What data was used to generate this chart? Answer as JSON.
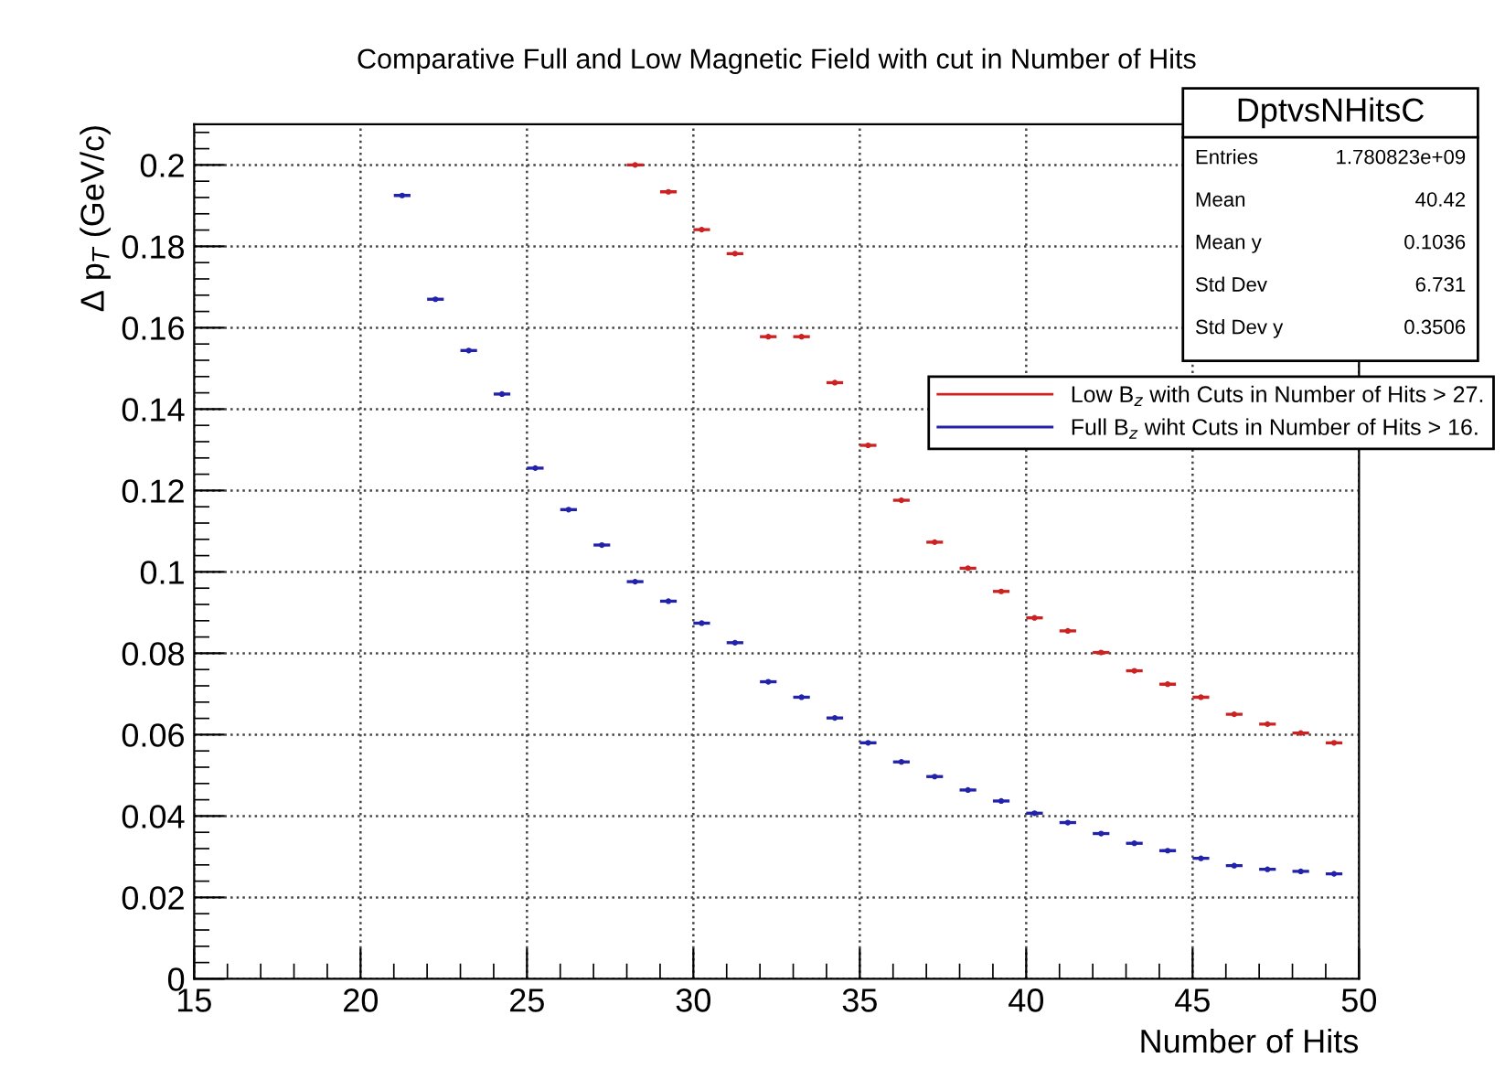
{
  "chart_data": {
    "type": "scatter",
    "title": "Comparative Full and Low Magnetic Field with cut in Number of Hits",
    "xlabel": "Number of Hits",
    "ylabel": "Δ p$_{T}$ (GeV/c)",
    "xlim": [
      15,
      50
    ],
    "xticks": [
      15,
      20,
      25,
      30,
      35,
      40,
      45,
      50
    ],
    "ylim": [
      0,
      0.21
    ],
    "yticks": [
      0,
      0.02,
      0.04,
      0.06,
      0.08,
      0.1,
      0.12,
      0.14,
      0.16,
      0.18,
      0.2
    ],
    "grid": true,
    "legend": "top right",
    "marker": "circle",
    "series": [
      {
        "name": "Low B$_{z}$ with Cuts in Number of Hits > 27.",
        "color": "#cc2222",
        "x": [
          28.25,
          29.25,
          30.25,
          31.25,
          32.25,
          33.25,
          34.25,
          35.25,
          36.25,
          37.25,
          38.25,
          39.25,
          40.25,
          41.25,
          42.25,
          43.25,
          44.25,
          45.25,
          46.25,
          47.25,
          48.25,
          49.25
        ],
        "values": [
          0.2,
          0.1934,
          0.1841,
          0.1782,
          0.1578,
          0.1578,
          0.1465,
          0.1311,
          0.1176,
          0.1073,
          0.1009,
          0.0952,
          0.0887,
          0.0855,
          0.0802,
          0.0757,
          0.0724,
          0.0692,
          0.065,
          0.0626,
          0.0604,
          0.058
        ],
        "xerrors": [
          0.25,
          0.25,
          0.25,
          0.25,
          0.25,
          0.25,
          0.25,
          0.25,
          0.25,
          0.25,
          0.25,
          0.25,
          0.25,
          0.25,
          0.25,
          0.25,
          0.25,
          0.25,
          0.25,
          0.25,
          0.25,
          0.25
        ]
      },
      {
        "name": "Full B$_{z}$ wiht Cuts in Number of Hits > 16.",
        "color": "#2222aa",
        "x": [
          21.25,
          22.25,
          23.25,
          24.25,
          25.25,
          26.25,
          27.25,
          28.25,
          29.25,
          30.25,
          31.25,
          32.25,
          33.25,
          34.25,
          35.25,
          36.25,
          37.25,
          38.25,
          39.25,
          40.25,
          41.25,
          42.25,
          43.25,
          44.25,
          45.25,
          46.25,
          47.25,
          48.25,
          49.25
        ],
        "values": [
          0.1925,
          0.167,
          0.1544,
          0.1437,
          0.1255,
          0.1153,
          0.1066,
          0.0976,
          0.0928,
          0.0874,
          0.0826,
          0.073,
          0.0692,
          0.0641,
          0.058,
          0.0533,
          0.0497,
          0.0464,
          0.0437,
          0.0407,
          0.0384,
          0.0357,
          0.0333,
          0.0315,
          0.0296,
          0.0278,
          0.0269,
          0.0264,
          0.0258
        ],
        "xerrors": [
          0.25,
          0.25,
          0.25,
          0.25,
          0.25,
          0.25,
          0.25,
          0.25,
          0.25,
          0.25,
          0.25,
          0.25,
          0.25,
          0.25,
          0.25,
          0.25,
          0.25,
          0.25,
          0.25,
          0.25,
          0.25,
          0.25,
          0.25,
          0.25,
          0.25,
          0.25,
          0.25,
          0.25,
          0.25
        ]
      }
    ],
    "annotations": [
      "DptvsNHitsC",
      "Entries",
      "1.780823e+09",
      "Mean",
      "40.42",
      "Mean y",
      "0.1036",
      "Std Dev",
      "6.731",
      "Std Dev y",
      "0.3506"
    ]
  }
}
